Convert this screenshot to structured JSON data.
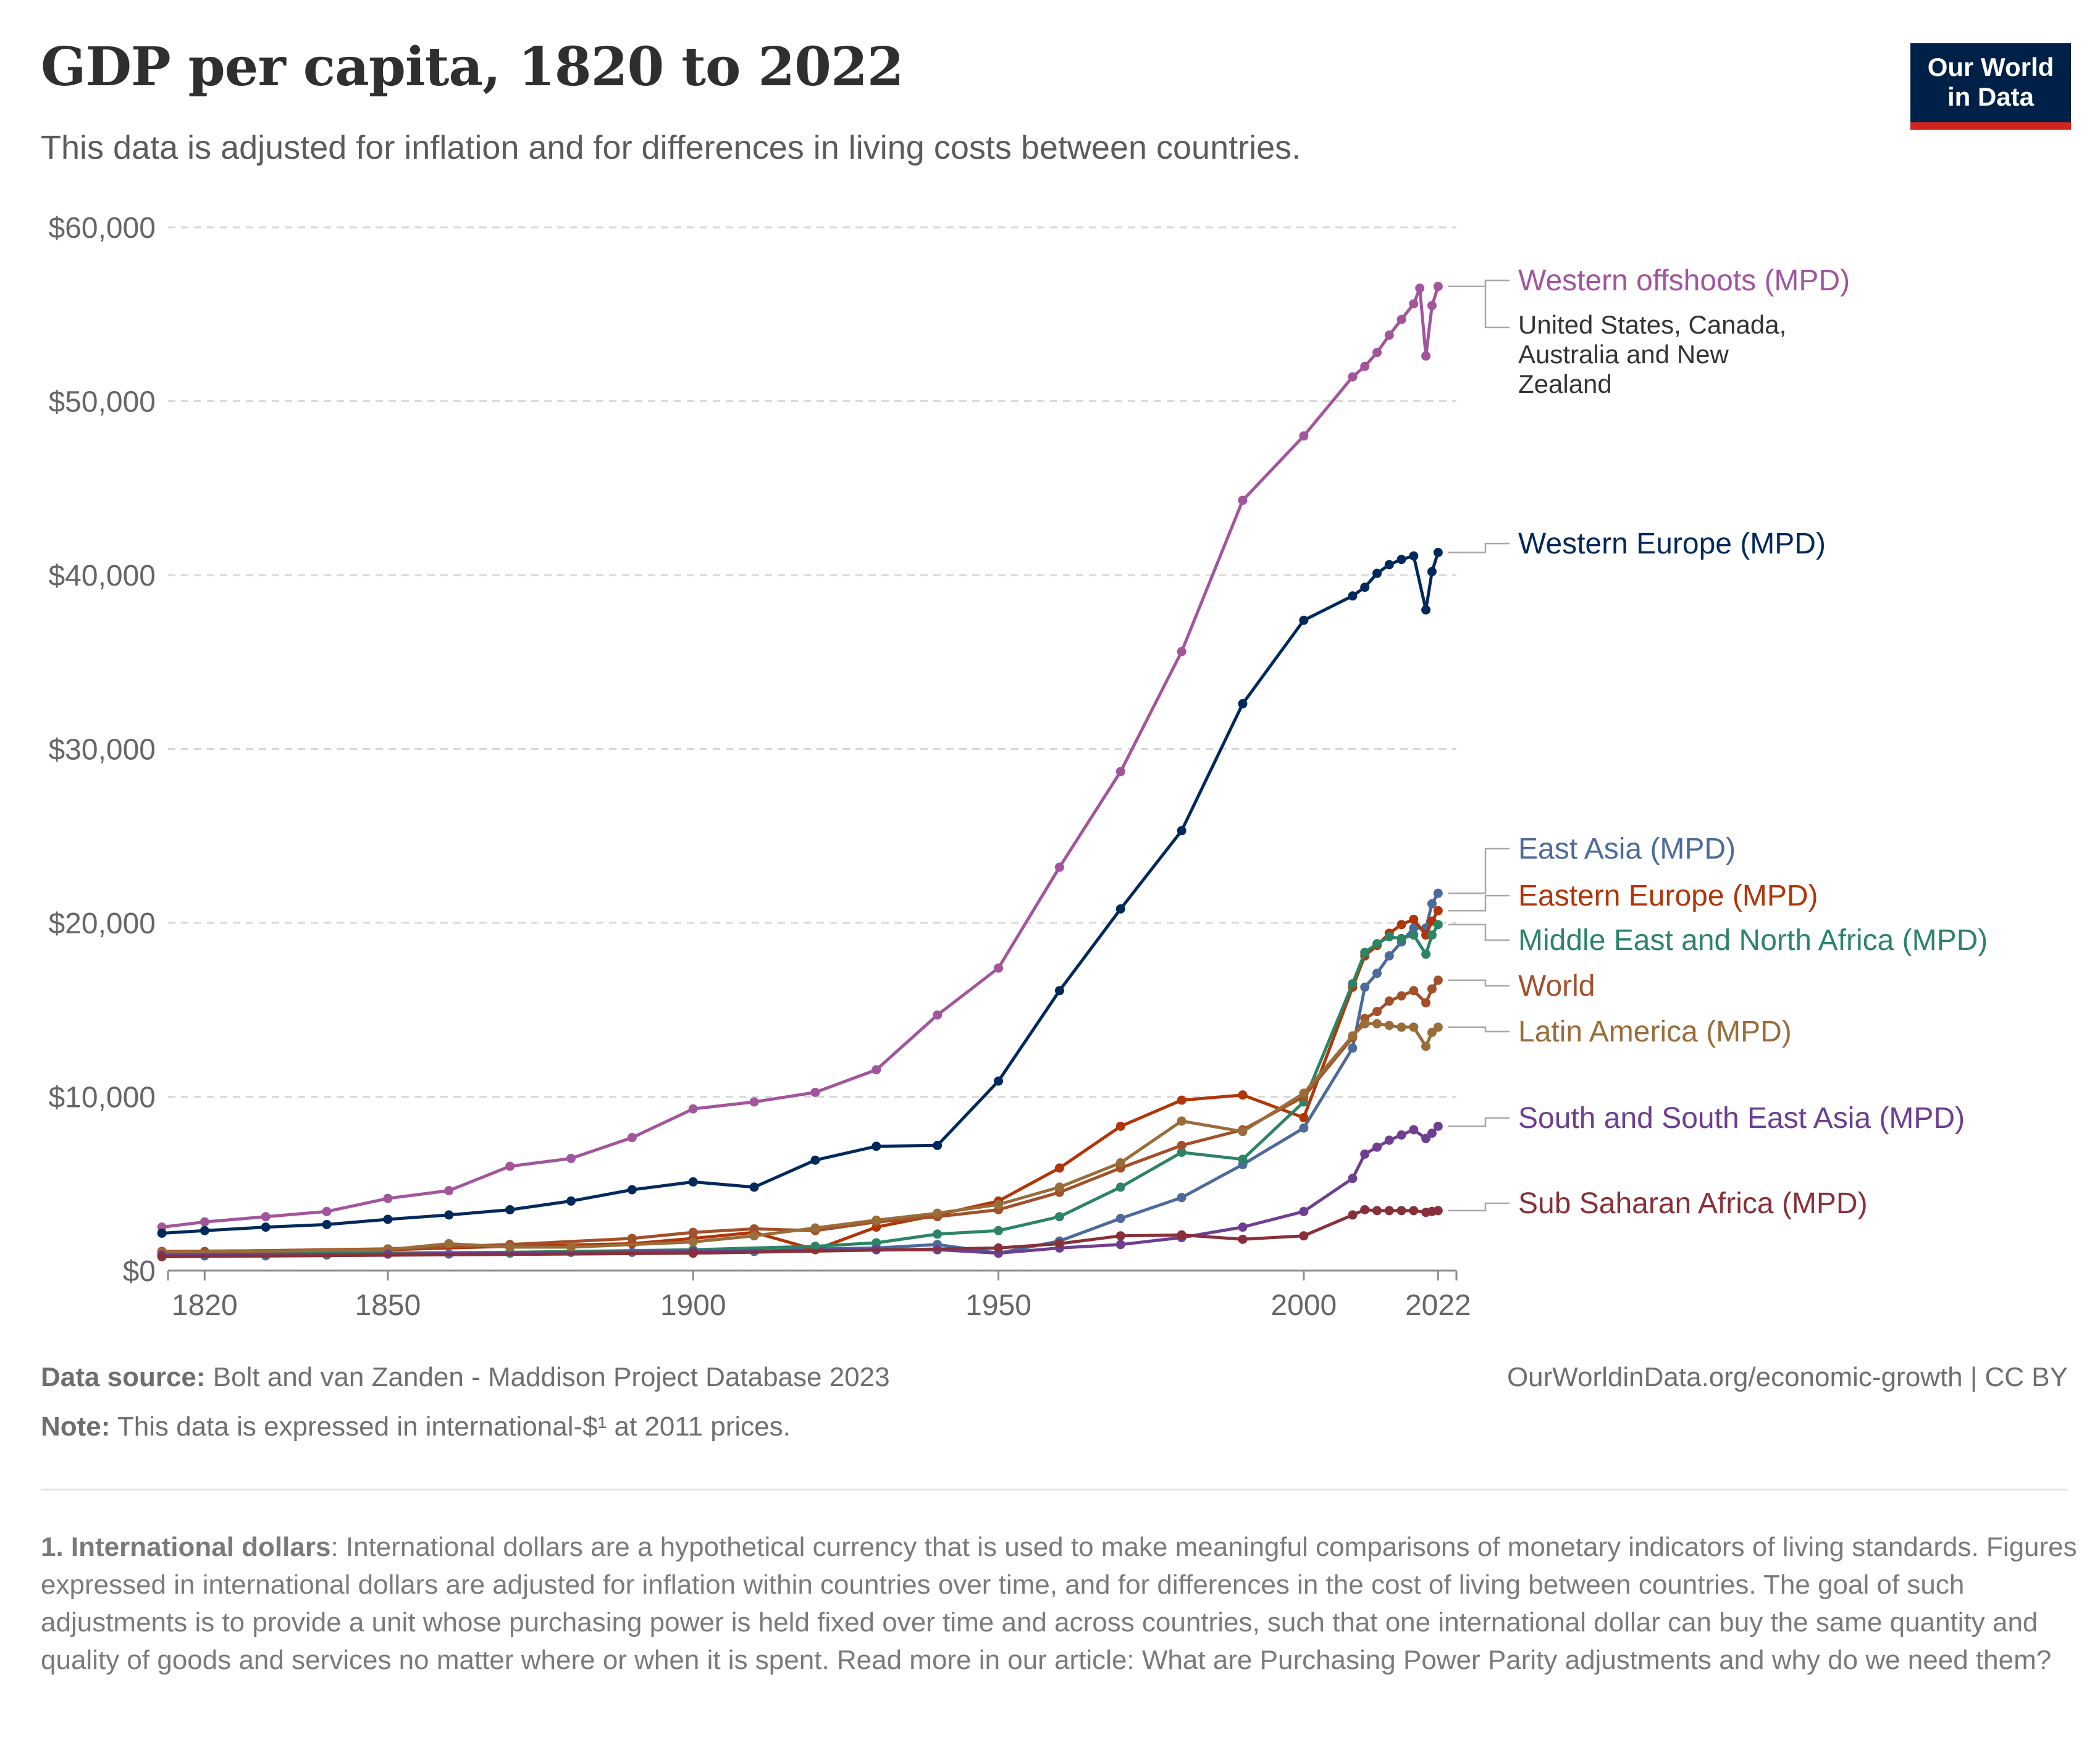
{
  "header": {
    "title": "GDP per capita, 1820 to 2022",
    "subtitle": "This data is adjusted for inflation and for differences in living costs between countries.",
    "logo_line1": "Our World",
    "logo_line2": "in Data"
  },
  "footer": {
    "source_label": "Data source:",
    "source_text": "Bolt and van Zanden - Maddison Project Database 2023",
    "note_label": "Note:",
    "note_text": "This data is expressed in international-$¹ at 2011 prices.",
    "url": "OurWorldinData.org/economic-growth | CC BY",
    "footnote_label": "1. International dollars",
    "footnote_text": ": International dollars are a hypothetical currency that is used to make meaningful comparisons of monetary indicators of living standards. Figures expressed in international dollars are adjusted for inflation within countries over time, and for differences in the cost of living between countries. The goal of such adjustments is to provide a unit whose purchasing power is held fixed over time and across countries, such that one international dollar can buy the same quantity and quality of goods and services no matter where or when it is spent. Read more in our article: What are Purchasing Power Parity adjustments and why do we need them?"
  },
  "chart_data": {
    "type": "line",
    "title": "GDP per capita, 1820 to 2022",
    "xlim": [
      1814,
      2025
    ],
    "ylim": [
      0,
      60000
    ],
    "x_ticks": [
      1820,
      1850,
      1900,
      1950,
      2000,
      2022
    ],
    "y_ticks": [
      0,
      10000,
      20000,
      30000,
      40000,
      50000,
      60000
    ],
    "y_tick_labels": [
      "$0",
      "$10,000",
      "$20,000",
      "$30,000",
      "$40,000",
      "$50,000",
      "$60,000"
    ],
    "grid": "horizontal dashed",
    "legend": "right, labels at line ends",
    "series": [
      {
        "name": "Western offshoots (MPD)",
        "sublabel": [
          "United States, Canada,",
          "Australia and New",
          "Zealand"
        ],
        "color": "#a2559c",
        "points": [
          [
            1813,
            2500
          ],
          [
            1820,
            2800
          ],
          [
            1830,
            3100
          ],
          [
            1840,
            3400
          ],
          [
            1850,
            4150
          ],
          [
            1860,
            4600
          ],
          [
            1870,
            6000
          ],
          [
            1880,
            6450
          ],
          [
            1890,
            7650
          ],
          [
            1900,
            9300
          ],
          [
            1910,
            9700
          ],
          [
            1920,
            10250
          ],
          [
            1930,
            11550
          ],
          [
            1940,
            14700
          ],
          [
            1950,
            17400
          ],
          [
            1960,
            23200
          ],
          [
            1970,
            28700
          ],
          [
            1980,
            35600
          ],
          [
            1990,
            44300
          ],
          [
            2000,
            48000
          ],
          [
            2008,
            51400
          ],
          [
            2010,
            52000
          ],
          [
            2012,
            52800
          ],
          [
            2014,
            53800
          ],
          [
            2016,
            54700
          ],
          [
            2018,
            55600
          ],
          [
            2019,
            56500
          ],
          [
            2020,
            52600
          ],
          [
            2021,
            55500
          ],
          [
            2022,
            56600
          ]
        ]
      },
      {
        "name": "Western Europe (MPD)",
        "color": "#00295b",
        "points": [
          [
            1813,
            2150
          ],
          [
            1820,
            2300
          ],
          [
            1830,
            2500
          ],
          [
            1840,
            2650
          ],
          [
            1850,
            2950
          ],
          [
            1860,
            3200
          ],
          [
            1870,
            3500
          ],
          [
            1880,
            4000
          ],
          [
            1890,
            4650
          ],
          [
            1900,
            5100
          ],
          [
            1910,
            4800
          ],
          [
            1920,
            6350
          ],
          [
            1930,
            7150
          ],
          [
            1940,
            7200
          ],
          [
            1950,
            10900
          ],
          [
            1960,
            16100
          ],
          [
            1970,
            20800
          ],
          [
            1980,
            25300
          ],
          [
            1990,
            32600
          ],
          [
            2000,
            37400
          ],
          [
            2008,
            38800
          ],
          [
            2010,
            39300
          ],
          [
            2012,
            40100
          ],
          [
            2014,
            40600
          ],
          [
            2016,
            40900
          ],
          [
            2018,
            41100
          ],
          [
            2020,
            38000
          ],
          [
            2021,
            40200
          ],
          [
            2022,
            41300
          ]
        ]
      },
      {
        "name": "East Asia (MPD)",
        "color": "#4c6a9c",
        "points": [
          [
            1813,
            900
          ],
          [
            1820,
            850
          ],
          [
            1830,
            850
          ],
          [
            1840,
            900
          ],
          [
            1850,
            950
          ],
          [
            1860,
            950
          ],
          [
            1870,
            1000
          ],
          [
            1880,
            1050
          ],
          [
            1890,
            1050
          ],
          [
            1900,
            1100
          ],
          [
            1910,
            1100
          ],
          [
            1920,
            1250
          ],
          [
            1930,
            1300
          ],
          [
            1940,
            1500
          ],
          [
            1950,
            1000
          ],
          [
            1960,
            1700
          ],
          [
            1970,
            3000
          ],
          [
            1980,
            4200
          ],
          [
            1990,
            6100
          ],
          [
            2000,
            8200
          ],
          [
            2008,
            12800
          ],
          [
            2010,
            16300
          ],
          [
            2012,
            17100
          ],
          [
            2014,
            18100
          ],
          [
            2016,
            18900
          ],
          [
            2018,
            19700
          ],
          [
            2020,
            19700
          ],
          [
            2021,
            21100
          ],
          [
            2022,
            21700
          ]
        ]
      },
      {
        "name": "Eastern Europe (MPD)",
        "color": "#b13507",
        "points": [
          [
            1813,
            1100
          ],
          [
            1850,
            1200
          ],
          [
            1870,
            1400
          ],
          [
            1890,
            1550
          ],
          [
            1900,
            1850
          ],
          [
            1910,
            2200
          ],
          [
            1920,
            1200
          ],
          [
            1930,
            2500
          ],
          [
            1940,
            3200
          ],
          [
            1950,
            4000
          ],
          [
            1960,
            5900
          ],
          [
            1970,
            8300
          ],
          [
            1980,
            9800
          ],
          [
            1990,
            10100
          ],
          [
            2000,
            8800
          ],
          [
            2008,
            16300
          ],
          [
            2010,
            18100
          ],
          [
            2012,
            18700
          ],
          [
            2014,
            19400
          ],
          [
            2016,
            19900
          ],
          [
            2018,
            20200
          ],
          [
            2020,
            19300
          ],
          [
            2021,
            20100
          ],
          [
            2022,
            20700
          ]
        ]
      },
      {
        "name": "Middle East and North Africa (MPD)",
        "color": "#2c8465",
        "points": [
          [
            1813,
            950
          ],
          [
            1870,
            1050
          ],
          [
            1900,
            1200
          ],
          [
            1920,
            1400
          ],
          [
            1930,
            1600
          ],
          [
            1940,
            2100
          ],
          [
            1950,
            2300
          ],
          [
            1960,
            3100
          ],
          [
            1970,
            4800
          ],
          [
            1980,
            6800
          ],
          [
            1990,
            6400
          ],
          [
            2000,
            9700
          ],
          [
            2008,
            16500
          ],
          [
            2010,
            18300
          ],
          [
            2012,
            18800
          ],
          [
            2014,
            19200
          ],
          [
            2016,
            19100
          ],
          [
            2018,
            19300
          ],
          [
            2020,
            18200
          ],
          [
            2021,
            19300
          ],
          [
            2022,
            19900
          ]
        ]
      },
      {
        "name": "World",
        "color": "#a2502a",
        "points": [
          [
            1813,
            1100
          ],
          [
            1820,
            1100
          ],
          [
            1850,
            1250
          ],
          [
            1870,
            1500
          ],
          [
            1890,
            1850
          ],
          [
            1900,
            2200
          ],
          [
            1910,
            2400
          ],
          [
            1920,
            2300
          ],
          [
            1930,
            2800
          ],
          [
            1940,
            3100
          ],
          [
            1950,
            3500
          ],
          [
            1960,
            4500
          ],
          [
            1970,
            5900
          ],
          [
            1980,
            7200
          ],
          [
            1990,
            8100
          ],
          [
            2000,
            10000
          ],
          [
            2008,
            13400
          ],
          [
            2010,
            14500
          ],
          [
            2012,
            14900
          ],
          [
            2014,
            15500
          ],
          [
            2016,
            15800
          ],
          [
            2018,
            16100
          ],
          [
            2020,
            15400
          ],
          [
            2021,
            16200
          ],
          [
            2022,
            16700
          ]
        ]
      },
      {
        "name": "Latin America (MPD)",
        "color": "#996d39",
        "points": [
          [
            1813,
            1050
          ],
          [
            1850,
            1200
          ],
          [
            1860,
            1550
          ],
          [
            1870,
            1350
          ],
          [
            1880,
            1350
          ],
          [
            1900,
            1650
          ],
          [
            1910,
            2000
          ],
          [
            1920,
            2450
          ],
          [
            1930,
            2900
          ],
          [
            1940,
            3300
          ],
          [
            1950,
            3800
          ],
          [
            1960,
            4800
          ],
          [
            1970,
            6200
          ],
          [
            1980,
            8600
          ],
          [
            1990,
            8000
          ],
          [
            2000,
            10200
          ],
          [
            2008,
            13500
          ],
          [
            2010,
            14200
          ],
          [
            2012,
            14200
          ],
          [
            2014,
            14100
          ],
          [
            2016,
            14000
          ],
          [
            2018,
            14000
          ],
          [
            2020,
            12900
          ],
          [
            2021,
            13700
          ],
          [
            2022,
            14000
          ]
        ]
      },
      {
        "name": "South and South East Asia (MPD)",
        "color": "#6d3e91",
        "points": [
          [
            1813,
            900
          ],
          [
            1850,
            950
          ],
          [
            1900,
            1100
          ],
          [
            1930,
            1200
          ],
          [
            1940,
            1200
          ],
          [
            1950,
            1000
          ],
          [
            1960,
            1300
          ],
          [
            1970,
            1500
          ],
          [
            1980,
            1900
          ],
          [
            1990,
            2500
          ],
          [
            2000,
            3400
          ],
          [
            2008,
            5300
          ],
          [
            2010,
            6700
          ],
          [
            2012,
            7100
          ],
          [
            2014,
            7500
          ],
          [
            2016,
            7800
          ],
          [
            2018,
            8100
          ],
          [
            2020,
            7600
          ],
          [
            2021,
            7900
          ],
          [
            2022,
            8300
          ]
        ]
      },
      {
        "name": "Sub Saharan Africa (MPD)",
        "color": "#883039",
        "points": [
          [
            1813,
            800
          ],
          [
            1900,
            1000
          ],
          [
            1950,
            1300
          ],
          [
            1960,
            1550
          ],
          [
            1970,
            2000
          ],
          [
            1980,
            2050
          ],
          [
            1990,
            1800
          ],
          [
            2000,
            2000
          ],
          [
            2008,
            3200
          ],
          [
            2010,
            3500
          ],
          [
            2012,
            3450
          ],
          [
            2014,
            3450
          ],
          [
            2016,
            3450
          ],
          [
            2018,
            3450
          ],
          [
            2020,
            3350
          ],
          [
            2021,
            3400
          ],
          [
            2022,
            3450
          ]
        ]
      }
    ]
  }
}
